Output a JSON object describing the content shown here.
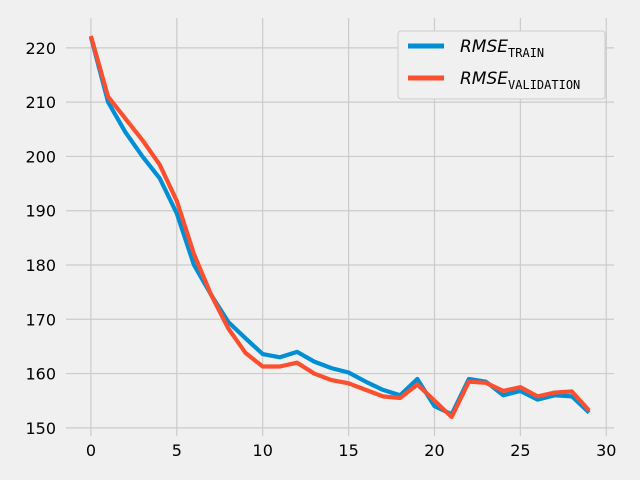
{
  "chart_data": {
    "type": "line",
    "title": "",
    "xlabel": "",
    "ylabel": "",
    "xlim": [
      -1.45,
      30.45
    ],
    "ylim": [
      148.5,
      225.5
    ],
    "xticks": [
      0,
      5,
      10,
      15,
      20,
      25,
      30
    ],
    "yticks": [
      150,
      160,
      170,
      180,
      190,
      200,
      210,
      220
    ],
    "grid": true,
    "legend_position": "top-right",
    "x": [
      0,
      1,
      2,
      3,
      4,
      5,
      6,
      7,
      8,
      9,
      10,
      11,
      12,
      13,
      14,
      15,
      16,
      17,
      18,
      19,
      20,
      21,
      22,
      23,
      24,
      25,
      26,
      27,
      28,
      29
    ],
    "series": [
      {
        "name_main": "RMSE",
        "name_sub": "TRAIN",
        "color": "#008fd5",
        "values": [
          222.0,
          210.0,
          204.5,
          200.0,
          196.0,
          189.5,
          180.0,
          174.5,
          169.5,
          166.5,
          163.6,
          163.0,
          164.0,
          162.2,
          161.0,
          160.2,
          158.5,
          157.0,
          156.0,
          159.0,
          154.0,
          152.5,
          159.0,
          158.5,
          156.0,
          156.8,
          155.2,
          156.0,
          155.8,
          152.8
        ]
      },
      {
        "name_main": "RMSE",
        "name_sub": "VALIDATION",
        "color": "#fc4f30",
        "values": [
          222.2,
          211.0,
          207.0,
          203.0,
          198.5,
          191.8,
          182.0,
          174.5,
          168.3,
          163.8,
          161.3,
          161.3,
          162.0,
          160.0,
          158.8,
          158.2,
          157.0,
          155.8,
          155.5,
          158.0,
          155.0,
          152.0,
          158.5,
          158.3,
          156.8,
          157.5,
          155.8,
          156.5,
          156.7,
          153.2
        ]
      }
    ]
  }
}
